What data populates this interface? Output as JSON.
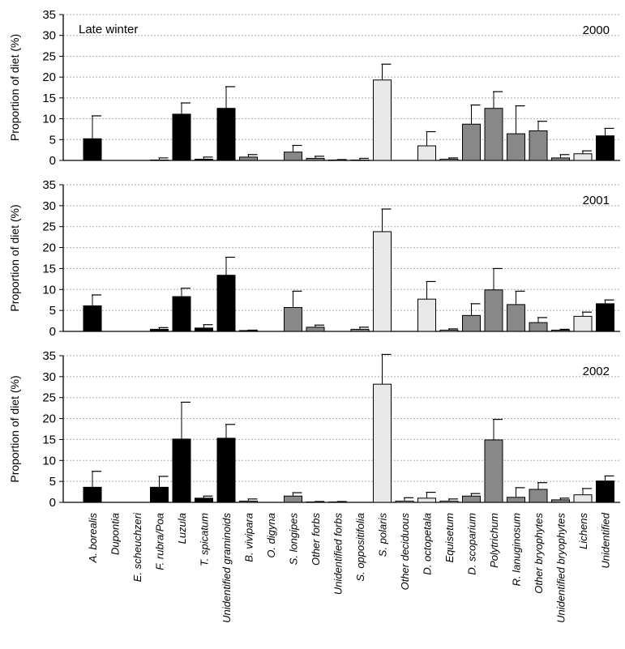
{
  "chart_data": {
    "type": "bar",
    "title": "",
    "season_label": "Late winter",
    "ylabel": "Proportion of diet (%)",
    "ylim": [
      0,
      35
    ],
    "yticks": [
      "0",
      "5",
      "10",
      "15",
      "20",
      "25",
      "30",
      "35"
    ],
    "grid": "horizontal dotted",
    "categories": [
      "A. borealis",
      "Dupontia",
      "E. scheuchzeri",
      "F. rubra/Poa",
      "Luzula",
      "T. spicatum",
      "Unidentified graminoids",
      "B. vivipara",
      "O. digyna",
      "S. longipes",
      "Other forbs",
      "Unidentified forbs",
      "S. oppositifolia",
      "S. polaris",
      "Other deciduous",
      "D. octopetala",
      "Equisetum",
      "D. scoparium",
      "Polytrichum",
      "R. lanuginosum",
      "Other bryophytes",
      "Unidentified bryophytes",
      "Lichens",
      "Unidentified"
    ],
    "category_groups": [
      "graminoid",
      "graminoid",
      "graminoid",
      "graminoid",
      "graminoid",
      "graminoid",
      "graminoid",
      "forb",
      "forb",
      "forb",
      "forb",
      "forb",
      "forb",
      "shrub",
      "shrub",
      "shrub",
      "shrub",
      "bryophyte",
      "bryophyte",
      "bryophyte",
      "bryophyte",
      "bryophyte",
      "lichen",
      "unidentified"
    ],
    "group_colors": {
      "graminoid": "#000000",
      "forb": "#888888",
      "shrub": "#e8e8e8",
      "bryophyte": "#888888",
      "lichen": "#e8e8e8",
      "unidentified": "#000000"
    },
    "panels": [
      {
        "year": "2000",
        "values": [
          5.2,
          0,
          0,
          0.1,
          11.1,
          0.3,
          12.5,
          0.8,
          0,
          2.0,
          0.5,
          0.1,
          0.1,
          19.3,
          0,
          3.5,
          0.3,
          8.7,
          12.5,
          6.4,
          7.1,
          0.6,
          1.6,
          5.9
        ],
        "errors": [
          5.5,
          0,
          0,
          0.5,
          2.7,
          0.5,
          5.2,
          0.6,
          0,
          1.6,
          0.5,
          0.1,
          0.4,
          3.8,
          0,
          3.4,
          0.3,
          4.6,
          4.0,
          6.7,
          2.3,
          0.8,
          0.7,
          1.8
        ]
      },
      {
        "year": "2001",
        "values": [
          6.1,
          0,
          0,
          0.5,
          8.3,
          0.8,
          13.4,
          0.2,
          0,
          5.7,
          1.0,
          0,
          0.5,
          23.8,
          0,
          7.7,
          0.3,
          3.8,
          9.9,
          6.4,
          2.1,
          0.3,
          3.6,
          6.6
        ],
        "errors": [
          2.6,
          0,
          0,
          0.4,
          2.0,
          0.8,
          4.3,
          0.1,
          0,
          3.9,
          0.5,
          0,
          0.5,
          5.4,
          0,
          4.2,
          0.3,
          2.8,
          5.1,
          3.2,
          1.2,
          0.2,
          1.0,
          0.9
        ]
      },
      {
        "year": "2002",
        "values": [
          3.6,
          0,
          0,
          3.6,
          15.1,
          1.0,
          15.3,
          0.3,
          0,
          1.5,
          0.1,
          0.1,
          0,
          28.2,
          0.3,
          1.0,
          0.3,
          1.5,
          14.9,
          1.2,
          3.1,
          0.6,
          1.8,
          5.1
        ],
        "errors": [
          3.8,
          0,
          0,
          2.6,
          8.8,
          0.5,
          3.3,
          0.5,
          0,
          0.8,
          0.1,
          0.1,
          0,
          7.1,
          0.8,
          1.4,
          0.5,
          0.6,
          4.9,
          2.3,
          1.6,
          0.4,
          1.5,
          1.2
        ]
      }
    ]
  }
}
